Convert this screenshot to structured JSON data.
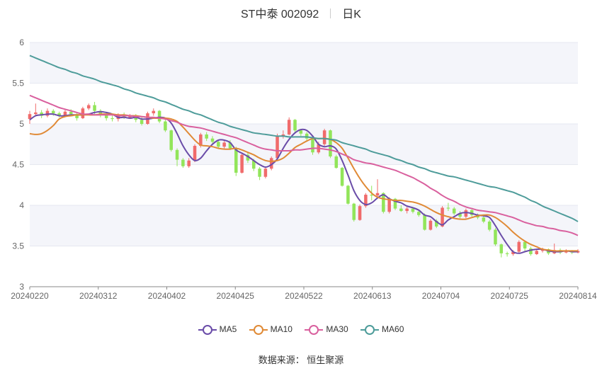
{
  "title": {
    "name": "ST中泰 002092",
    "period": "日K"
  },
  "chart_data": {
    "type": "candlestick",
    "y_ticks": [
      3,
      3.5,
      4,
      4.5,
      5,
      5.5,
      6
    ],
    "ylim": [
      3,
      6
    ],
    "x_ticks": [
      "20240220",
      "20240312",
      "20240402",
      "20240425",
      "20240522",
      "20240613",
      "20240704",
      "20240725",
      "20240814"
    ],
    "colors": {
      "up": "#f06b6b",
      "down": "#92e55a"
    },
    "candles": [
      [
        5.06,
        5.12,
        5.16,
        5.0
      ],
      [
        5.12,
        5.14,
        5.25,
        5.1
      ],
      [
        5.14,
        5.1,
        5.17,
        5.07
      ],
      [
        5.1,
        5.16,
        5.19,
        5.08
      ],
      [
        5.16,
        5.13,
        5.18,
        5.1
      ],
      [
        5.13,
        5.1,
        5.15,
        5.08
      ],
      [
        5.1,
        5.15,
        5.17,
        5.09
      ],
      [
        5.15,
        5.12,
        5.18,
        5.1
      ],
      [
        5.12,
        5.07,
        5.14,
        5.04
      ],
      [
        5.07,
        5.19,
        5.21,
        5.06
      ],
      [
        5.19,
        5.23,
        5.25,
        5.17
      ],
      [
        5.23,
        5.16,
        5.27,
        5.12
      ],
      [
        5.16,
        5.12,
        5.18,
        5.08
      ],
      [
        5.12,
        5.07,
        5.14,
        5.04
      ],
      [
        5.07,
        5.06,
        5.1,
        5.03
      ],
      [
        5.06,
        5.11,
        5.13,
        5.03
      ],
      [
        5.11,
        5.08,
        5.14,
        5.06
      ],
      [
        5.08,
        5.1,
        5.12,
        5.06
      ],
      [
        5.1,
        5.05,
        5.12,
        5.02
      ],
      [
        5.05,
        5.0,
        5.08,
        4.98
      ],
      [
        5.0,
        5.13,
        5.15,
        4.99
      ],
      [
        5.13,
        5.16,
        5.19,
        5.1
      ],
      [
        5.16,
        5.03,
        5.17,
        5.01
      ],
      [
        5.03,
        4.92,
        5.05,
        4.9
      ],
      [
        4.92,
        4.68,
        4.93,
        4.66
      ],
      [
        4.68,
        4.56,
        4.7,
        4.48
      ],
      [
        4.56,
        4.48,
        4.58,
        4.46
      ],
      [
        4.48,
        4.55,
        4.58,
        4.46
      ],
      [
        4.55,
        4.73,
        4.75,
        4.53
      ],
      [
        4.73,
        4.87,
        4.89,
        4.71
      ],
      [
        4.87,
        4.82,
        4.9,
        4.79
      ],
      [
        4.82,
        4.78,
        4.85,
        4.75
      ],
      [
        4.78,
        4.72,
        4.8,
        4.7
      ],
      [
        4.72,
        4.77,
        4.79,
        4.7
      ],
      [
        4.77,
        4.7,
        4.8,
        4.68
      ],
      [
        4.7,
        4.4,
        4.72,
        4.36
      ],
      [
        4.4,
        4.62,
        4.64,
        4.39
      ],
      [
        4.62,
        4.55,
        4.65,
        4.52
      ],
      [
        4.55,
        4.45,
        4.57,
        4.42
      ],
      [
        4.45,
        4.35,
        4.47,
        4.31
      ],
      [
        4.35,
        4.45,
        4.47,
        4.33
      ],
      [
        4.45,
        4.58,
        4.6,
        4.43
      ],
      [
        4.58,
        4.85,
        4.88,
        4.56
      ],
      [
        4.85,
        4.87,
        4.92,
        4.82
      ],
      [
        4.87,
        5.05,
        5.08,
        4.86
      ],
      [
        5.05,
        4.92,
        5.06,
        4.9
      ],
      [
        4.92,
        4.88,
        4.94,
        4.85
      ],
      [
        4.88,
        4.82,
        4.9,
        4.79
      ],
      [
        4.82,
        4.65,
        4.84,
        4.62
      ],
      [
        4.65,
        4.75,
        4.78,
        4.63
      ],
      [
        4.75,
        4.92,
        4.94,
        4.73
      ],
      [
        4.92,
        4.6,
        4.93,
        4.58
      ],
      [
        4.6,
        4.46,
        4.62,
        4.45
      ],
      [
        4.46,
        4.24,
        4.47,
        4.23
      ],
      [
        4.24,
        4.02,
        4.25,
        4.01
      ],
      [
        4.02,
        3.82,
        4.03,
        3.8
      ],
      [
        3.82,
        3.99,
        4.01,
        3.81
      ],
      [
        3.99,
        4.13,
        4.15,
        3.97
      ],
      [
        4.13,
        4.12,
        4.24,
        4.06
      ],
      [
        4.12,
        4.15,
        4.32,
        4.1
      ],
      [
        4.15,
        3.92,
        4.16,
        3.9
      ],
      [
        3.92,
        4.08,
        4.1,
        3.9
      ],
      [
        4.08,
        3.96,
        4.09,
        3.94
      ],
      [
        3.96,
        3.93,
        4.0,
        3.92
      ],
      [
        3.93,
        3.96,
        3.98,
        3.9
      ],
      [
        3.96,
        3.92,
        3.98,
        3.9
      ],
      [
        3.92,
        3.88,
        3.94,
        3.86
      ],
      [
        3.88,
        3.7,
        3.9,
        3.69
      ],
      [
        3.7,
        3.81,
        3.83,
        3.69
      ],
      [
        3.81,
        3.74,
        3.83,
        3.72
      ],
      [
        3.74,
        3.97,
        3.99,
        3.73
      ],
      [
        3.97,
        3.96,
        4.03,
        3.93
      ],
      [
        3.96,
        3.9,
        3.98,
        3.88
      ],
      [
        3.9,
        3.86,
        3.93,
        3.84
      ],
      [
        3.86,
        3.94,
        3.96,
        3.84
      ],
      [
        3.94,
        3.88,
        3.96,
        3.86
      ],
      [
        3.88,
        3.85,
        3.9,
        3.83
      ],
      [
        3.85,
        3.8,
        3.87,
        3.78
      ],
      [
        3.8,
        3.7,
        3.82,
        3.68
      ],
      [
        3.7,
        3.52,
        3.72,
        3.5
      ],
      [
        3.52,
        3.41,
        3.53,
        3.36
      ],
      [
        3.41,
        3.4,
        3.43,
        3.37
      ],
      [
        3.4,
        3.43,
        3.45,
        3.38
      ],
      [
        3.43,
        3.55,
        3.57,
        3.42
      ],
      [
        3.55,
        3.47,
        3.56,
        3.44
      ],
      [
        3.47,
        3.4,
        3.49,
        3.38
      ],
      [
        3.4,
        3.44,
        3.46,
        3.39
      ],
      [
        3.44,
        3.46,
        3.48,
        3.42
      ],
      [
        3.46,
        3.41,
        3.47,
        3.39
      ],
      [
        3.41,
        3.45,
        3.53,
        3.4
      ],
      [
        3.45,
        3.42,
        3.47,
        3.4
      ],
      [
        3.42,
        3.44,
        3.46,
        3.41
      ],
      [
        3.44,
        3.42,
        3.45,
        3.4
      ],
      [
        3.42,
        3.44,
        3.46,
        3.41
      ]
    ],
    "series": [
      {
        "name": "MA5",
        "color": "#6a4ca8",
        "values": [
          5.05,
          5.1,
          5.11,
          5.12,
          5.12,
          5.1,
          5.1,
          5.11,
          5.11,
          5.11,
          5.12,
          5.14,
          5.15,
          5.14,
          5.12,
          5.08,
          5.08,
          5.07,
          5.08,
          5.06,
          5.06,
          5.07,
          5.08,
          5.07,
          5.01,
          4.88,
          4.73,
          4.62,
          4.55,
          4.58,
          4.67,
          4.75,
          4.8,
          4.8,
          4.77,
          4.68,
          4.64,
          4.6,
          4.55,
          4.5,
          4.47,
          4.5,
          4.57,
          4.7,
          4.81,
          4.89,
          4.93,
          4.92,
          4.85,
          4.75,
          4.72,
          4.73,
          4.69,
          4.55,
          4.37,
          4.18,
          4.06,
          4.01,
          4.03,
          4.09,
          4.13,
          4.08,
          4.05,
          4.03,
          3.99,
          3.97,
          3.94,
          3.88,
          3.86,
          3.8,
          3.76,
          3.82,
          3.86,
          3.9,
          3.91,
          3.9,
          3.88,
          3.87,
          3.85,
          3.75,
          3.63,
          3.52,
          3.43,
          3.41,
          3.43,
          3.45,
          3.46,
          3.46,
          3.44,
          3.43,
          3.43,
          3.44,
          3.43,
          3.43
        ]
      },
      {
        "name": "MA10",
        "color": "#e08a36",
        "values": [
          4.88,
          4.87,
          4.88,
          4.92,
          4.98,
          5.06,
          5.09,
          5.1,
          5.11,
          5.11,
          5.11,
          5.11,
          5.12,
          5.12,
          5.12,
          5.11,
          5.11,
          5.1,
          5.1,
          5.09,
          5.08,
          5.07,
          5.07,
          5.07,
          5.06,
          5.03,
          4.96,
          4.88,
          4.8,
          4.74,
          4.73,
          4.72,
          4.7,
          4.69,
          4.69,
          4.7,
          4.68,
          4.65,
          4.62,
          4.58,
          4.55,
          4.54,
          4.55,
          4.58,
          4.64,
          4.71,
          4.75,
          4.79,
          4.82,
          4.82,
          4.82,
          4.81,
          4.77,
          4.7,
          4.58,
          4.45,
          4.33,
          4.23,
          4.15,
          4.1,
          4.08,
          4.07,
          4.06,
          4.06,
          4.05,
          4.04,
          4.02,
          3.99,
          3.95,
          3.91,
          3.88,
          3.86,
          3.84,
          3.83,
          3.83,
          3.85,
          3.87,
          3.88,
          3.88,
          3.85,
          3.8,
          3.74,
          3.67,
          3.61,
          3.56,
          3.52,
          3.49,
          3.46,
          3.45,
          3.44,
          3.44,
          3.44,
          3.44,
          3.44
        ]
      },
      {
        "name": "MA30",
        "color": "#d9609e",
        "values": [
          5.35,
          5.32,
          5.29,
          5.26,
          5.23,
          5.2,
          5.18,
          5.16,
          5.14,
          5.12,
          5.12,
          5.11,
          5.11,
          5.11,
          5.11,
          5.1,
          5.1,
          5.1,
          5.09,
          5.09,
          5.08,
          5.08,
          5.07,
          5.06,
          5.04,
          5.02,
          4.99,
          4.97,
          4.96,
          4.95,
          4.93,
          4.91,
          4.89,
          4.87,
          4.85,
          4.83,
          4.8,
          4.77,
          4.74,
          4.71,
          4.69,
          4.68,
          4.67,
          4.67,
          4.67,
          4.68,
          4.68,
          4.69,
          4.7,
          4.7,
          4.69,
          4.68,
          4.66,
          4.63,
          4.6,
          4.56,
          4.54,
          4.52,
          4.51,
          4.49,
          4.47,
          4.45,
          4.43,
          4.4,
          4.37,
          4.34,
          4.3,
          4.26,
          4.21,
          4.17,
          4.12,
          4.08,
          4.05,
          4.01,
          3.98,
          3.96,
          3.94,
          3.93,
          3.92,
          3.91,
          3.89,
          3.87,
          3.85,
          3.82,
          3.79,
          3.77,
          3.75,
          3.74,
          3.72,
          3.71,
          3.69,
          3.68,
          3.66,
          3.63
        ]
      },
      {
        "name": "MA60",
        "color": "#4e9c9a",
        "values": [
          5.84,
          5.81,
          5.78,
          5.75,
          5.72,
          5.69,
          5.67,
          5.64,
          5.62,
          5.59,
          5.57,
          5.55,
          5.52,
          5.5,
          5.48,
          5.46,
          5.43,
          5.41,
          5.38,
          5.36,
          5.34,
          5.32,
          5.29,
          5.27,
          5.24,
          5.21,
          5.18,
          5.16,
          5.13,
          5.11,
          5.08,
          5.05,
          5.02,
          5.0,
          4.97,
          4.95,
          4.93,
          4.91,
          4.89,
          4.88,
          4.87,
          4.86,
          4.85,
          4.85,
          4.84,
          4.84,
          4.84,
          4.84,
          4.83,
          4.82,
          4.82,
          4.81,
          4.8,
          4.77,
          4.75,
          4.73,
          4.71,
          4.69,
          4.66,
          4.64,
          4.62,
          4.6,
          4.57,
          4.55,
          4.52,
          4.5,
          4.47,
          4.45,
          4.42,
          4.4,
          4.38,
          4.36,
          4.35,
          4.33,
          4.31,
          4.29,
          4.27,
          4.25,
          4.23,
          4.22,
          4.2,
          4.18,
          4.16,
          4.13,
          4.1,
          4.06,
          4.03,
          3.99,
          3.96,
          3.93,
          3.9,
          3.87,
          3.84,
          3.8
        ]
      }
    ]
  },
  "legend": {
    "items": [
      {
        "label": "MA5",
        "color": "#6a4ca8"
      },
      {
        "label": "MA10",
        "color": "#e08a36"
      },
      {
        "label": "MA30",
        "color": "#d9609e"
      },
      {
        "label": "MA60",
        "color": "#4e9c9a"
      }
    ]
  },
  "source": "数据来源： 恒生聚源"
}
